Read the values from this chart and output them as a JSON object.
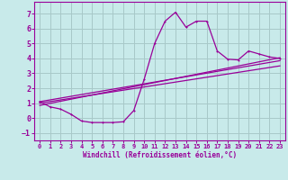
{
  "xlabel": "Windchill (Refroidissement éolien,°C)",
  "background_color": "#c8eaea",
  "grid_color": "#a8c8c8",
  "line_color": "#990099",
  "xlim": [
    -0.5,
    23.5
  ],
  "ylim": [
    -1.5,
    7.8
  ],
  "yticks": [
    -1,
    0,
    1,
    2,
    3,
    4,
    5,
    6,
    7
  ],
  "xticks": [
    0,
    1,
    2,
    3,
    4,
    5,
    6,
    7,
    8,
    9,
    10,
    11,
    12,
    13,
    14,
    15,
    16,
    17,
    18,
    19,
    20,
    21,
    22,
    23
  ],
  "line1_x": [
    0,
    1,
    2,
    3,
    4,
    5,
    6,
    7,
    8,
    9,
    10,
    11,
    12,
    13,
    14,
    15,
    16,
    17,
    18,
    19,
    20,
    21,
    22,
    23
  ],
  "line1_y": [
    1.1,
    0.75,
    0.6,
    0.25,
    -0.2,
    -0.3,
    -0.3,
    -0.3,
    -0.25,
    0.5,
    2.6,
    5.0,
    6.5,
    7.1,
    6.1,
    6.5,
    6.5,
    4.5,
    3.95,
    3.9,
    4.5,
    4.3,
    4.1,
    4.0
  ],
  "line2_x": [
    0,
    23
  ],
  "line2_y": [
    1.1,
    3.85
  ],
  "line3_x": [
    0,
    23
  ],
  "line3_y": [
    1.0,
    3.5
  ],
  "line4_x": [
    0,
    23
  ],
  "line4_y": [
    0.85,
    4.05
  ]
}
